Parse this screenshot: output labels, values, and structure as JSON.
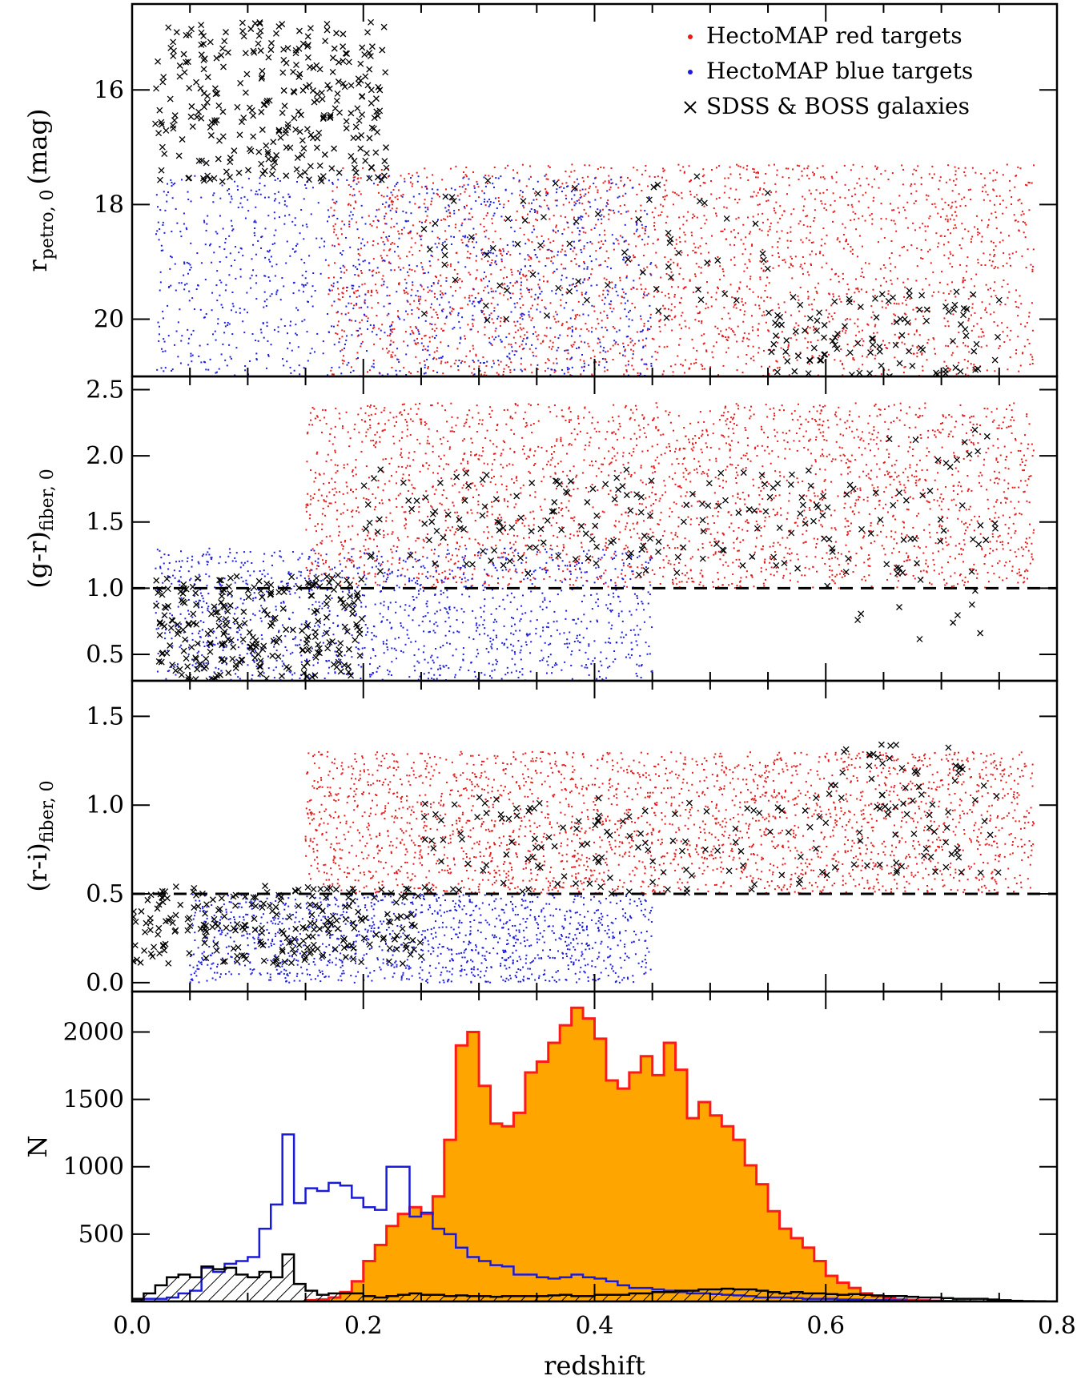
{
  "colors": {
    "red": "#e8191a",
    "blue": "#1c1ce0",
    "black": "#000000",
    "orange": "#ffa500",
    "hist_red_edge": "#ff1a1a",
    "hist_blue_edge": "#1a1ad9"
  },
  "legend": {
    "placement": "top-right",
    "entries": [
      {
        "label": "HectoMAP red targets",
        "marker": "dot",
        "color": "#e8191a"
      },
      {
        "label": "HectoMAP blue targets",
        "marker": "dot",
        "color": "#1c1ce0"
      },
      {
        "label": "SDSS & BOSS galaxies",
        "marker": "x",
        "color": "#000000"
      }
    ]
  },
  "xaxis": {
    "label": "redshift",
    "range": [
      0.0,
      0.8
    ],
    "ticks": [
      0.0,
      0.2,
      0.4,
      0.6,
      0.8
    ],
    "tick_labels": [
      "0.0",
      "0.2",
      "0.4",
      "0.6",
      "0.8"
    ]
  },
  "chart_data": [
    {
      "type": "scatter",
      "panel": "magnitude",
      "ylabel": {
        "main": "r",
        "sub": "petro, 0",
        "suffix": "(mag)"
      },
      "ylim": [
        14.5,
        21.0
      ],
      "inverted": true,
      "yticks": [
        16,
        18,
        20
      ],
      "ytick_labels": [
        "16",
        "18",
        "20"
      ],
      "series": [
        {
          "name": "HectoMAP red targets",
          "color": "#e8191a",
          "clouds": [
            {
              "z": [
                0.17,
                0.78
              ],
              "y": [
                17.3,
                21.2
              ],
              "n": 2600
            }
          ]
        },
        {
          "name": "HectoMAP blue targets",
          "color": "#1c1ce0",
          "clouds": [
            {
              "z": [
                0.02,
                0.45
              ],
              "y": [
                17.5,
                21.2
              ],
              "n": 1300
            }
          ]
        },
        {
          "name": "SDSS & BOSS galaxies",
          "color": "#000000",
          "clouds": [
            {
              "z": [
                0.02,
                0.22
              ],
              "y": [
                14.8,
                17.6
              ],
              "n": 320
            },
            {
              "z": [
                0.25,
                0.55
              ],
              "y": [
                17.5,
                20.2
              ],
              "n": 70
            },
            {
              "z": [
                0.55,
                0.75
              ],
              "y": [
                19.5,
                21.1
              ],
              "n": 110
            }
          ]
        }
      ]
    },
    {
      "type": "scatter",
      "panel": "g-r color",
      "ylabel": {
        "main": "(g-r)",
        "sub": "fiber, 0",
        "suffix": ""
      },
      "ylim": [
        0.3,
        2.6
      ],
      "yticks": [
        0.5,
        1.0,
        1.5,
        2.0,
        2.5
      ],
      "ytick_labels": [
        "0.5",
        "1.0",
        "1.5",
        "2.0",
        "2.5"
      ],
      "reference_line": 1.0,
      "series": [
        {
          "name": "HectoMAP red targets",
          "color": "#e8191a",
          "clouds": [
            {
              "z": [
                0.15,
                0.78
              ],
              "y": [
                1.0,
                2.4
              ],
              "n": 2600
            }
          ]
        },
        {
          "name": "HectoMAP blue targets",
          "color": "#1c1ce0",
          "clouds": [
            {
              "z": [
                0.02,
                0.45
              ],
              "y": [
                0.3,
                1.3
              ],
              "n": 1300
            }
          ]
        },
        {
          "name": "SDSS & BOSS galaxies",
          "color": "#000000",
          "clouds": [
            {
              "z": [
                0.02,
                0.2
              ],
              "y": [
                0.3,
                1.1
              ],
              "n": 260
            },
            {
              "z": [
                0.2,
                0.6
              ],
              "y": [
                1.1,
                1.9
              ],
              "n": 160
            },
            {
              "z": [
                0.6,
                0.75
              ],
              "y": [
                0.6,
                2.2
              ],
              "n": 60
            }
          ]
        }
      ]
    },
    {
      "type": "scatter",
      "panel": "r-i color",
      "ylabel": {
        "main": "(r-i)",
        "sub": "fiber, 0",
        "suffix": ""
      },
      "ylim": [
        -0.05,
        1.7
      ],
      "yticks": [
        0.0,
        0.5,
        1.0,
        1.5
      ],
      "ytick_labels": [
        "0.0",
        "0.5",
        "1.0",
        "1.5"
      ],
      "reference_line": 0.5,
      "series": [
        {
          "name": "HectoMAP red targets",
          "color": "#e8191a",
          "clouds": [
            {
              "z": [
                0.15,
                0.78
              ],
              "y": [
                0.5,
                1.3
              ],
              "n": 2600
            }
          ]
        },
        {
          "name": "HectoMAP blue targets",
          "color": "#1c1ce0",
          "clouds": [
            {
              "z": [
                0.05,
                0.45
              ],
              "y": [
                0.0,
                0.5
              ],
              "n": 1300
            }
          ]
        },
        {
          "name": "SDSS & BOSS galaxies",
          "color": "#000000",
          "clouds": [
            {
              "z": [
                0.0,
                0.25
              ],
              "y": [
                0.1,
                0.55
              ],
              "n": 250
            },
            {
              "z": [
                0.25,
                0.6
              ],
              "y": [
                0.5,
                1.05
              ],
              "n": 120
            },
            {
              "z": [
                0.6,
                0.75
              ],
              "y": [
                0.6,
                1.35
              ],
              "n": 80
            }
          ]
        }
      ]
    },
    {
      "type": "bar",
      "panel": "redshift histogram",
      "ylabel": {
        "main": "N",
        "sub": "",
        "suffix": ""
      },
      "ylim": [
        0,
        2300
      ],
      "yticks": [
        500,
        1000,
        1500,
        2000
      ],
      "ytick_labels": [
        "500",
        "1000",
        "1500",
        "2000"
      ],
      "bin_width": 0.01,
      "bin_start": 0.0,
      "series": [
        {
          "style": "orange-filled",
          "color": "#ffa500",
          "edge": "#ff1a1a",
          "values": [
            0,
            0,
            0,
            0,
            0,
            0,
            0,
            0,
            0,
            0,
            0,
            0,
            0,
            0,
            0,
            10,
            15,
            30,
            70,
            150,
            300,
            420,
            560,
            650,
            700,
            650,
            780,
            1200,
            1900,
            2000,
            1600,
            1320,
            1300,
            1400,
            1700,
            1780,
            1920,
            2050,
            2180,
            2100,
            1950,
            1640,
            1580,
            1700,
            1820,
            1680,
            1920,
            1720,
            1360,
            1480,
            1380,
            1300,
            1200,
            1010,
            870,
            670,
            540,
            470,
            400,
            300,
            190,
            140,
            100,
            60,
            40,
            25,
            15,
            12,
            8,
            5,
            3,
            2,
            1,
            1,
            0,
            0,
            0,
            0,
            0,
            0
          ]
        },
        {
          "style": "blue-outline",
          "color": "#1a1ad9",
          "values": [
            10,
            20,
            20,
            30,
            60,
            80,
            250,
            220,
            280,
            300,
            330,
            540,
            720,
            1240,
            730,
            840,
            820,
            880,
            860,
            770,
            700,
            680,
            1000,
            1000,
            630,
            660,
            540,
            500,
            400,
            330,
            300,
            270,
            260,
            200,
            200,
            180,
            170,
            180,
            200,
            180,
            170,
            150,
            120,
            100,
            100,
            90,
            80,
            70,
            60,
            60,
            55,
            50,
            45,
            40,
            30,
            30,
            30,
            25,
            20,
            20,
            20,
            15,
            15,
            10,
            10,
            10,
            8,
            5,
            5,
            5,
            3,
            2,
            2,
            1,
            1,
            0,
            0,
            0,
            0,
            0
          ]
        },
        {
          "style": "black-hatched",
          "color": "#000000",
          "values": [
            20,
            60,
            120,
            180,
            200,
            180,
            260,
            240,
            250,
            200,
            180,
            220,
            180,
            350,
            130,
            80,
            50,
            60,
            60,
            60,
            40,
            30,
            40,
            50,
            60,
            50,
            50,
            40,
            45,
            40,
            40,
            35,
            40,
            40,
            40,
            40,
            45,
            50,
            40,
            40,
            50,
            50,
            50,
            60,
            60,
            70,
            70,
            80,
            80,
            90,
            90,
            95,
            90,
            90,
            80,
            70,
            60,
            70,
            60,
            60,
            55,
            50,
            55,
            50,
            45,
            40,
            40,
            35,
            30,
            30,
            25,
            20,
            20,
            20,
            15,
            10,
            5,
            3,
            2,
            1
          ]
        }
      ]
    }
  ]
}
